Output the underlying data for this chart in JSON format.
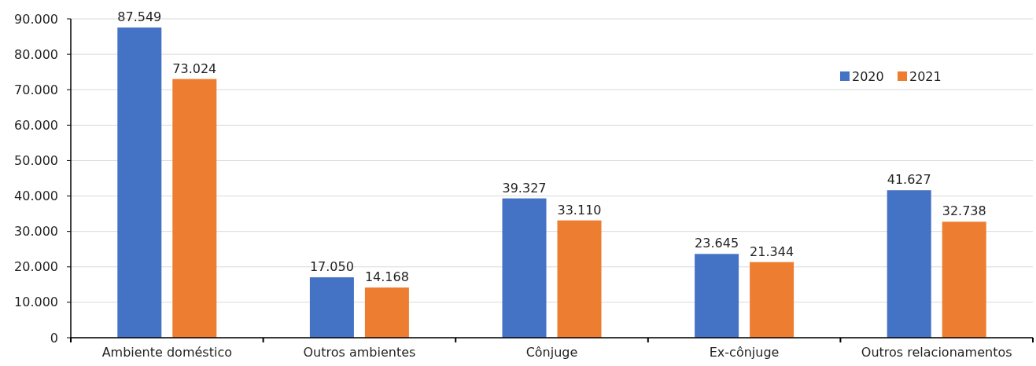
{
  "chart_data": {
    "type": "bar",
    "categories": [
      "Ambiente doméstico",
      "Outros ambientes",
      "Cônjuge",
      "Ex-cônjuge",
      "Outros relacionamentos"
    ],
    "series": [
      {
        "name": "2020",
        "color": "#4472c4",
        "values": [
          87549,
          17050,
          39327,
          23645,
          41627
        ],
        "value_labels": [
          "87.549",
          "17.050",
          "39.327",
          "23.645",
          "41.627"
        ]
      },
      {
        "name": "2021",
        "color": "#ed7d31",
        "values": [
          73024,
          14168,
          33110,
          21344,
          32738
        ],
        "value_labels": [
          "73.024",
          "14.168",
          "33.110",
          "21.344",
          "32.738"
        ]
      }
    ],
    "ylim": [
      0,
      90000
    ],
    "yticks": [
      {
        "value": 0,
        "label": "0"
      },
      {
        "value": 10000,
        "label": "10.000"
      },
      {
        "value": 20000,
        "label": "20.000"
      },
      {
        "value": 30000,
        "label": "30.000"
      },
      {
        "value": 40000,
        "label": "40.000"
      },
      {
        "value": 50000,
        "label": "50.000"
      },
      {
        "value": 60000,
        "label": "60.000"
      },
      {
        "value": 70000,
        "label": "70.000"
      },
      {
        "value": 80000,
        "label": "80.000"
      },
      {
        "value": 90000,
        "label": "90.000"
      }
    ],
    "grid": "y",
    "legend": "top right"
  }
}
